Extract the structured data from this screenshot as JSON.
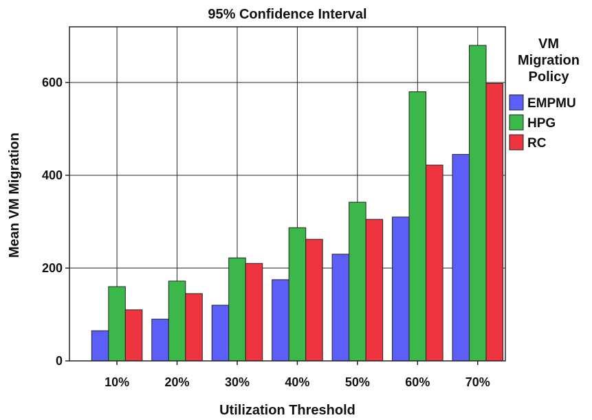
{
  "chart_data": {
    "type": "bar",
    "title": "95% Confidence Interval",
    "xlabel": "Utilization Threshold",
    "ylabel": "Mean VM Migration",
    "ylim": [
      0,
      720
    ],
    "yticks": [
      0,
      200,
      400,
      600
    ],
    "grid": true,
    "legend_position": "right",
    "legend_title": [
      "VM",
      "Migration",
      "Policy"
    ],
    "categories": [
      "10%",
      "20%",
      "30%",
      "40%",
      "50%",
      "60%",
      "70%"
    ],
    "series": [
      {
        "name": "EMPMU",
        "color": "#5b5ff8",
        "values": [
          65,
          90,
          120,
          175,
          230,
          310,
          445
        ]
      },
      {
        "name": "HPG",
        "color": "#3cb84a",
        "values": [
          160,
          172,
          222,
          287,
          342,
          580,
          680
        ]
      },
      {
        "name": "RC",
        "color": "#ee343e",
        "values": [
          110,
          145,
          210,
          262,
          305,
          422,
          598
        ]
      }
    ]
  }
}
